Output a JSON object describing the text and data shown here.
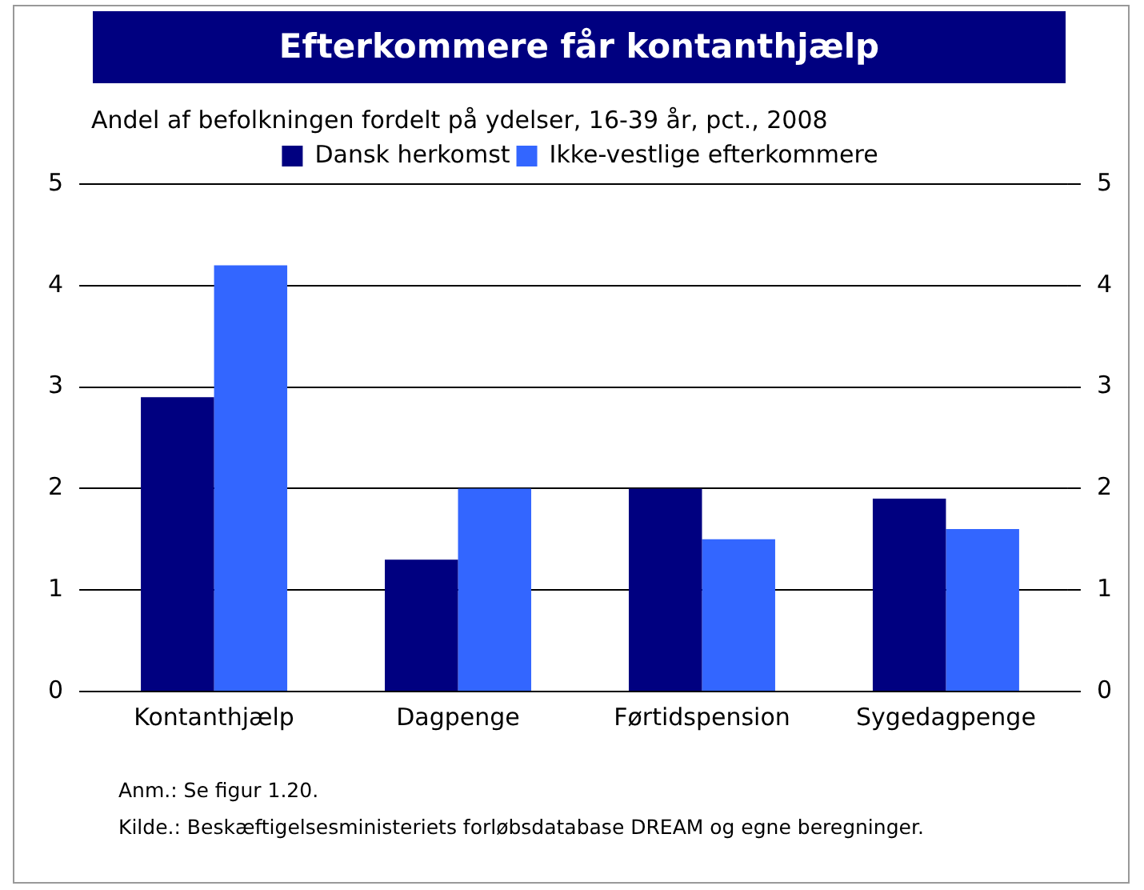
{
  "chart_data": {
    "type": "bar",
    "title": "Efterkommere får kontanthjælp",
    "subtitle": "Andel af befolkningen fordelt på ydelser, 16-39 år, pct., 2008",
    "categories": [
      "Kontanthjælp",
      "Dagpenge",
      "Førtidspension",
      "Sygedagpenge"
    ],
    "series": [
      {
        "name": "Dansk herkomst",
        "color": "#000080",
        "values": [
          2.9,
          1.3,
          2.0,
          1.9
        ]
      },
      {
        "name": "Ikke-vestlige efterkommere",
        "color": "#3366ff",
        "values": [
          4.2,
          2.0,
          1.5,
          1.6
        ]
      }
    ],
    "ylim": [
      0,
      5
    ],
    "yticks": [
      0,
      1,
      2,
      3,
      4,
      5
    ],
    "y2lim": [
      0,
      5
    ],
    "y2ticks": [
      0,
      1,
      2,
      3,
      4,
      5
    ],
    "grid": "y",
    "legend": "top",
    "annotations": [
      "Anm.: Se figur 1.20.",
      "Kilde.: Beskæftigelsesministeriets forløbsdatabase DREAM og egne beregninger."
    ]
  }
}
